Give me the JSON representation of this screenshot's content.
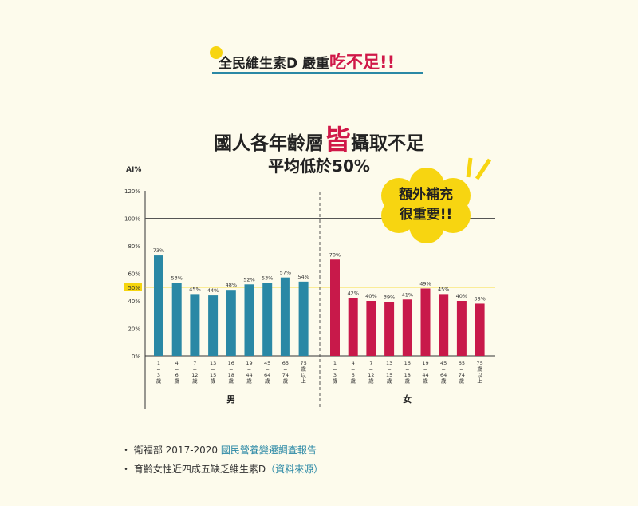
{
  "banner": {
    "text": "全民維生素D 嚴重",
    "highlight": "吃不足!!"
  },
  "headline": {
    "pre": "國人各年齡層",
    "highlight": "皆",
    "post": "攝取不足",
    "line2": "平均低於50%"
  },
  "callout": {
    "line1": "額外補充",
    "line2": "很重要!!"
  },
  "notes": [
    {
      "bullet": "・",
      "text": "衛福部 2017-2020 ",
      "link": "國民營養變遷調查報告"
    },
    {
      "bullet": "・",
      "text": "育齡女性近四成五缺乏維生素D",
      "link": "（資料來源）"
    }
  ],
  "colors": {
    "male": "#2a88a5",
    "female": "#c8194a",
    "threshold": "#f5d50e",
    "accent": "#d01848"
  },
  "chart_data": {
    "type": "bar",
    "ylabel": "AI%",
    "ylim": [
      0,
      120
    ],
    "yticks": [
      "0%",
      "20%",
      "40%",
      "60%",
      "80%",
      "100%",
      "120%"
    ],
    "ytick_values": [
      0,
      20,
      40,
      60,
      80,
      100,
      120
    ],
    "reference_lines": [
      {
        "value": 100,
        "label": ""
      },
      {
        "value": 50,
        "label": "50%"
      }
    ],
    "categories": [
      [
        "1",
        "~",
        "3",
        "歲"
      ],
      [
        "4",
        "~",
        "6",
        "歲"
      ],
      [
        "7",
        "~",
        "12",
        "歲"
      ],
      [
        "13",
        "~",
        "15",
        "歲"
      ],
      [
        "16",
        "~",
        "18",
        "歲"
      ],
      [
        "19",
        "~",
        "44",
        "歲"
      ],
      [
        "45",
        "~",
        "64",
        "歲"
      ],
      [
        "65",
        "~",
        "74",
        "歲"
      ],
      [
        "75",
        "歲",
        "以",
        "上"
      ]
    ],
    "series": [
      {
        "name": "男",
        "values": [
          73,
          53,
          45,
          44,
          48,
          52,
          53,
          57,
          54
        ]
      },
      {
        "name": "女",
        "values": [
          70,
          42,
          40,
          39,
          41,
          49,
          45,
          40,
          38
        ]
      }
    ]
  }
}
